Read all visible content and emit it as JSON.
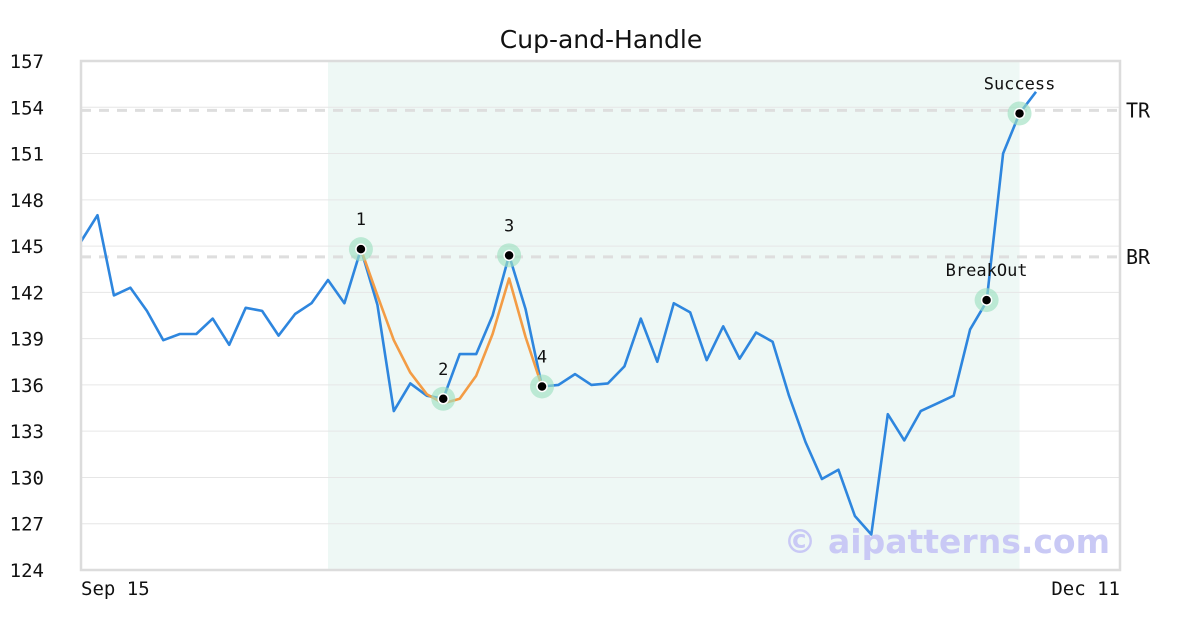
{
  "chart_data": {
    "type": "line",
    "title": "Cup-and-Handle",
    "xlabel": "",
    "ylabel": "",
    "ylim": [
      124,
      157
    ],
    "yticks": [
      124,
      127,
      130,
      133,
      136,
      139,
      142,
      145,
      148,
      151,
      154,
      157
    ],
    "x_tick_labels": [
      {
        "index": 0,
        "label": "Sep 15"
      },
      {
        "index": 58,
        "label": "Dec 11"
      }
    ],
    "grid": "horizontal",
    "series": [
      {
        "color": "#2e86de",
        "values": [
          145.3,
          147.0,
          141.8,
          142.3,
          140.8,
          138.9,
          139.3,
          139.3,
          140.3,
          138.6,
          141.0,
          140.8,
          139.2,
          140.6,
          141.3,
          142.8,
          141.3,
          144.8,
          141.2,
          134.3,
          136.1,
          135.3,
          135.1,
          138.0,
          138.0,
          140.5,
          144.4,
          140.9,
          135.9,
          136.0,
          136.7,
          136.0,
          136.1,
          137.2,
          140.3,
          137.5,
          141.3,
          140.7,
          137.6,
          139.8,
          137.7,
          139.4,
          138.8,
          135.3,
          132.3,
          129.9,
          130.5,
          127.5,
          126.3,
          134.1,
          132.4,
          134.3,
          134.8,
          135.3,
          139.6,
          141.4,
          151.0,
          153.6,
          155.0
        ]
      },
      {
        "color": "#f39c45",
        "values": [
          null,
          null,
          null,
          null,
          null,
          null,
          null,
          null,
          null,
          null,
          null,
          null,
          null,
          null,
          null,
          null,
          null,
          144.8,
          141.8,
          138.9,
          136.8,
          135.4,
          134.8,
          135.1,
          136.6,
          139.3,
          142.9,
          139.1,
          135.9,
          null,
          null,
          null,
          null,
          null,
          null,
          null,
          null,
          null,
          null,
          null,
          null,
          null,
          null,
          null,
          null,
          null,
          null,
          null,
          null,
          null,
          null,
          null,
          null,
          null,
          null,
          null,
          null,
          null,
          null
        ]
      }
    ],
    "levels": [
      {
        "label": "TR",
        "value": 153.8
      },
      {
        "label": "BR",
        "value": 144.3
      }
    ],
    "highlight_range": [
      15,
      57
    ],
    "highlight_color": "#e3f3ee",
    "annotations": [
      {
        "label": "1",
        "index": 17,
        "value": 144.8,
        "label_pos": "above"
      },
      {
        "label": "2",
        "index": 22,
        "value": 135.1,
        "label_pos": "above"
      },
      {
        "label": "3",
        "index": 26,
        "value": 144.4,
        "label_pos": "above"
      },
      {
        "label": "4",
        "index": 28,
        "value": 135.9,
        "label_pos": "above"
      },
      {
        "label": "BreakOut",
        "index": 55,
        "value": 141.5,
        "label_pos": "above"
      },
      {
        "label": "Success",
        "index": 57,
        "value": 153.6,
        "label_pos": "above"
      }
    ],
    "watermark": "© aipatterns.com"
  }
}
